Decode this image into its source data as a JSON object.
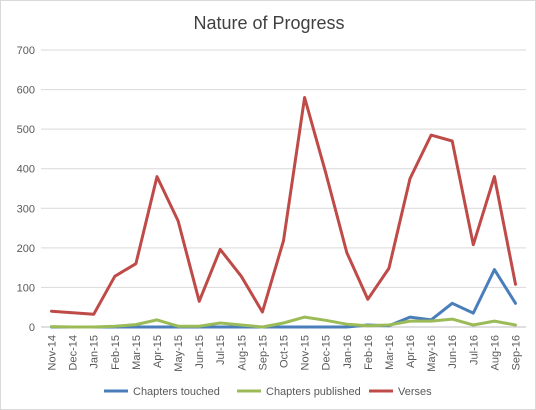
{
  "chart_data": {
    "type": "line",
    "title": "Nature of Progress",
    "xlabel": "",
    "ylabel": "",
    "categories": [
      "Nov-14",
      "Dec-14",
      "Jan-15",
      "Feb-15",
      "Mar-15",
      "Apr-15",
      "May-15",
      "Jun-15",
      "Jul-15",
      "Aug-15",
      "Sep-15",
      "Oct-15",
      "Nov-15",
      "Dec-15",
      "Jan-16",
      "Feb-16",
      "Mar-16",
      "Apr-16",
      "May-16",
      "Jun-16",
      "Jul-16",
      "Aug-16",
      "Sep-16"
    ],
    "ylim": [
      0,
      700
    ],
    "yticks": [
      "0",
      "100",
      "200",
      "300",
      "400",
      "500",
      "600",
      "700"
    ],
    "grid": true,
    "legend_position": "bottom",
    "series": [
      {
        "name": "Chapters touched",
        "color": "#4a7ebb",
        "values": [
          0,
          0,
          0,
          0,
          0,
          0,
          0,
          0,
          0,
          0,
          0,
          0,
          0,
          0,
          0,
          5,
          3,
          25,
          18,
          60,
          35,
          145,
          60
        ]
      },
      {
        "name": "Chapters published",
        "color": "#9bbb59",
        "values": [
          1,
          0,
          0,
          2,
          6,
          18,
          2,
          2,
          10,
          5,
          0,
          10,
          25,
          17,
          7,
          3,
          5,
          15,
          15,
          20,
          5,
          15,
          5
        ]
      },
      {
        "name": "Verses",
        "color": "#be4b48",
        "values": [
          40,
          36,
          32,
          128,
          160,
          380,
          268,
          65,
          196,
          128,
          38,
          218,
          580,
          390,
          188,
          70,
          148,
          375,
          485,
          470,
          208,
          380,
          108
        ]
      }
    ]
  }
}
